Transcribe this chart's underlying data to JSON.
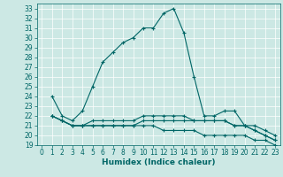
{
  "xlabel": "Humidex (Indice chaleur)",
  "bg_color": "#cce8e4",
  "line_color": "#006666",
  "grid_color": "#ffffff",
  "xlim": [
    -0.5,
    23.5
  ],
  "ylim": [
    19,
    33.5
  ],
  "yticks": [
    19,
    20,
    21,
    22,
    23,
    24,
    25,
    26,
    27,
    28,
    29,
    30,
    31,
    32,
    33
  ],
  "xticks": [
    0,
    1,
    2,
    3,
    4,
    5,
    6,
    7,
    8,
    9,
    10,
    11,
    12,
    13,
    14,
    15,
    16,
    17,
    18,
    19,
    20,
    21,
    22,
    23
  ],
  "series": [
    [
      24.0,
      22.0,
      21.5,
      22.5,
      25.0,
      27.5,
      28.5,
      29.5,
      30.0,
      31.0,
      31.0,
      32.5,
      33.0,
      30.5,
      26.0,
      22.0,
      22.0,
      22.5,
      22.5,
      21.0,
      20.5,
      20.0,
      19.5
    ],
    [
      22.0,
      21.5,
      21.0,
      21.0,
      21.5,
      21.5,
      21.5,
      21.5,
      21.5,
      22.0,
      22.0,
      22.0,
      22.0,
      22.0,
      21.5,
      21.5,
      21.5,
      21.5,
      21.0,
      21.0,
      20.5,
      20.0,
      19.5
    ],
    [
      22.0,
      21.5,
      21.0,
      21.0,
      21.0,
      21.0,
      21.0,
      21.0,
      21.0,
      21.0,
      21.0,
      20.5,
      20.5,
      20.5,
      20.5,
      20.0,
      20.0,
      20.0,
      20.0,
      20.0,
      19.5,
      19.5,
      19.0
    ],
    [
      22.0,
      21.5,
      21.0,
      21.0,
      21.0,
      21.0,
      21.0,
      21.0,
      21.0,
      21.5,
      21.5,
      21.5,
      21.5,
      21.5,
      21.5,
      21.5,
      21.5,
      21.5,
      21.0,
      21.0,
      21.0,
      20.5,
      20.0
    ]
  ],
  "x_start": 1,
  "tick_fontsize": 5.5,
  "xlabel_fontsize": 6.5
}
